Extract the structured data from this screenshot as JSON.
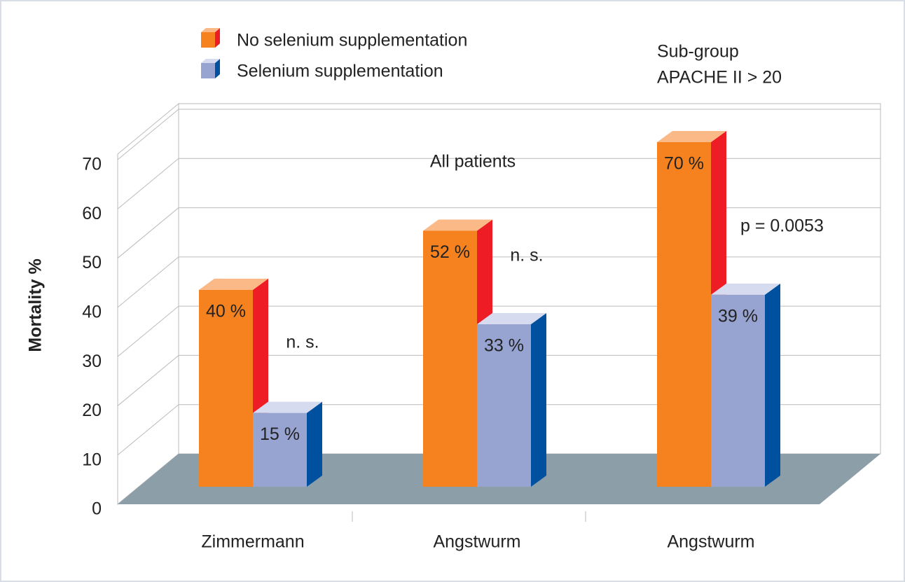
{
  "chart_data": {
    "type": "bar3d",
    "y_label": "Mortality %",
    "categories": [
      "Zimmermann",
      "Angstwurm",
      "Angstwurm"
    ],
    "series": [
      {
        "name": "No selenium supplementation",
        "color": "#f5821f",
        "values": [
          40,
          52,
          70
        ],
        "value_labels": [
          "40 %",
          "52 %",
          "70 %"
        ]
      },
      {
        "name": "Selenium supplementation",
        "color": "#97a3d1",
        "values": [
          15,
          33,
          39
        ],
        "value_labels": [
          "15 %",
          "33 %",
          "39 %"
        ]
      }
    ],
    "annotations": [
      "n. s.",
      "All patients",
      "n. s.",
      "Sub-group",
      "APACHE II > 20",
      "p = 0.0053"
    ],
    "ylim": [
      0,
      70
    ],
    "yticks": [
      0,
      10,
      20,
      30,
      40,
      50,
      60,
      70
    ],
    "grid": true
  }
}
